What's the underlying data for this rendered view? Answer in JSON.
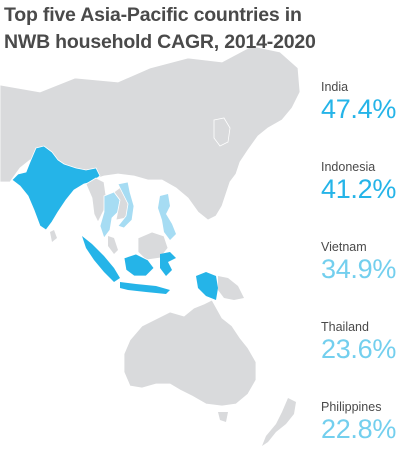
{
  "title_line1": "Top five Asia-Pacific countries in",
  "title_line2": "NWB household CAGR, 2014-2020",
  "colors": {
    "land": "#d9dadc",
    "border": "#ffffff",
    "highlight_dark": "#25b4e8",
    "highlight_light": "#a6dcf3",
    "value_dark": "#25b4e8",
    "value_light": "#73cfee",
    "text": "#4a4a4a"
  },
  "countries": [
    {
      "name": "India",
      "value": "47.4%",
      "shade": "dark"
    },
    {
      "name": "Indonesia",
      "value": "41.2%",
      "shade": "dark"
    },
    {
      "name": "Vietnam",
      "value": "34.9%",
      "shade": "light"
    },
    {
      "name": "Thailand",
      "value": "23.6%",
      "shade": "light"
    },
    {
      "name": "Philippines",
      "value": "22.8%",
      "shade": "light"
    }
  ]
}
